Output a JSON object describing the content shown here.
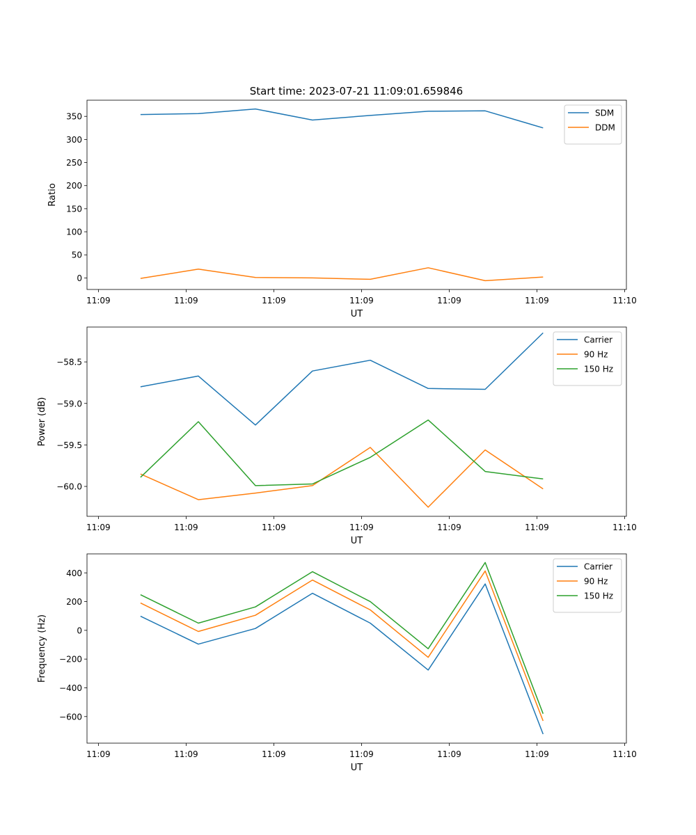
{
  "figure": {
    "title": "Start time: 2023-07-21 11:09:01.659846"
  },
  "colors": {
    "blue": "#1f77b4",
    "orange": "#ff7f0e",
    "green": "#2ca02c"
  },
  "chart_data": [
    {
      "type": "line",
      "xlabel": "UT",
      "ylabel": "Ratio",
      "x_tick_labels": [
        "11:09",
        "11:09",
        "11:09",
        "11:09",
        "11:09",
        "11:09",
        "11:10"
      ],
      "x_ticks": [
        0,
        1,
        2,
        3,
        4,
        5,
        6
      ],
      "xlim": [
        -0.13,
        6.02
      ],
      "x": [
        0.48,
        1.14,
        1.79,
        2.44,
        3.1,
        3.76,
        4.41,
        5.07
      ],
      "ylim": [
        -25,
        385
      ],
      "yticks": [
        0,
        50,
        100,
        150,
        200,
        250,
        300,
        350
      ],
      "y_tick_labels": [
        "0",
        "50",
        "100",
        "150",
        "200",
        "250",
        "300",
        "350"
      ],
      "legend_position": "top-right",
      "series": [
        {
          "name": "SDM",
          "color": "blue",
          "values": [
            354,
            356,
            366,
            342,
            352,
            361,
            362,
            325
          ]
        },
        {
          "name": "DDM",
          "color": "orange",
          "values": [
            -1,
            19,
            1,
            0,
            -3,
            22,
            -6,
            2
          ]
        }
      ]
    },
    {
      "type": "line",
      "xlabel": "UT",
      "ylabel": "Power (dB)",
      "x_tick_labels": [
        "11:09",
        "11:09",
        "11:09",
        "11:09",
        "11:09",
        "11:09",
        "11:10"
      ],
      "x_ticks": [
        0,
        1,
        2,
        3,
        4,
        5,
        6
      ],
      "xlim": [
        -0.13,
        6.02
      ],
      "x": [
        0.48,
        1.14,
        1.79,
        2.44,
        3.1,
        3.76,
        4.41,
        5.07
      ],
      "ylim": [
        -60.36,
        -58.08
      ],
      "yticks": [
        -60.0,
        -59.5,
        -59.0,
        -58.5
      ],
      "y_tick_labels": [
        "−60.0",
        "−59.5",
        "−59.0",
        "−58.5"
      ],
      "legend_position": "top-right",
      "series": [
        {
          "name": "Carrier",
          "color": "blue",
          "values": [
            -58.8,
            -58.67,
            -59.26,
            -58.61,
            -58.48,
            -58.82,
            -58.83,
            -58.15
          ]
        },
        {
          "name": "90 Hz",
          "color": "orange",
          "values": [
            -59.85,
            -60.16,
            -60.08,
            -59.99,
            -59.53,
            -60.25,
            -59.56,
            -60.03
          ]
        },
        {
          "name": "150 Hz",
          "color": "green",
          "values": [
            -59.89,
            -59.22,
            -59.99,
            -59.97,
            -59.65,
            -59.2,
            -59.82,
            -59.91
          ]
        }
      ]
    },
    {
      "type": "line",
      "xlabel": "UT",
      "ylabel": "Frequency (Hz)",
      "x_tick_labels": [
        "11:09",
        "11:09",
        "11:09",
        "11:09",
        "11:09",
        "11:09",
        "11:10"
      ],
      "x_ticks": [
        0,
        1,
        2,
        3,
        4,
        5,
        6
      ],
      "xlim": [
        -0.13,
        6.02
      ],
      "x": [
        0.48,
        1.14,
        1.79,
        2.44,
        3.1,
        3.76,
        4.41,
        5.07
      ],
      "ylim": [
        -785,
        532
      ],
      "yticks": [
        -600,
        -400,
        -200,
        0,
        200,
        400
      ],
      "y_tick_labels": [
        "−600",
        "−400",
        "−200",
        "0",
        "200",
        "400"
      ],
      "legend_position": "top-right",
      "series": [
        {
          "name": "Carrier",
          "color": "blue",
          "values": [
            98,
            -96,
            13,
            258,
            50,
            -276,
            323,
            -722
          ]
        },
        {
          "name": "90 Hz",
          "color": "orange",
          "values": [
            190,
            -8,
            105,
            350,
            142,
            -188,
            413,
            -630
          ]
        },
        {
          "name": "150 Hz",
          "color": "green",
          "values": [
            248,
            50,
            163,
            408,
            200,
            -128,
            472,
            -580
          ]
        }
      ]
    }
  ]
}
